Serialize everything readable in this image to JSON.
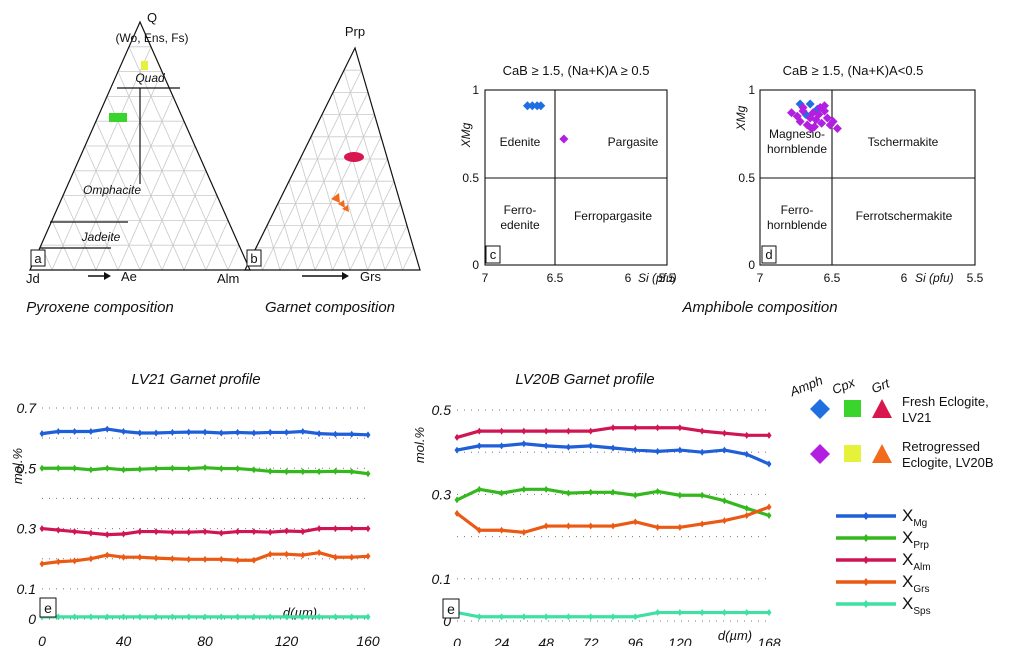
{
  "panels": {
    "pyroxene": {
      "apex_top": "Q",
      "apex_top_sub": "(Wo, Ens, Fs)",
      "apex_left": "Jd",
      "apex_right": "Ae",
      "fields": [
        "Quad",
        "Omphacite",
        "Jadeite"
      ],
      "panel_letter": "a",
      "caption": "Pyroxene composition"
    },
    "garnet": {
      "apex_top": "Prp",
      "apex_left": "Alm",
      "apex_right": "Grs",
      "panel_letter": "b",
      "caption": "Garnet composition"
    },
    "amphibole_c": {
      "title": "CaB ≥ 1.5, (Na+K)A ≥ 0.5",
      "ylabel": "XMg",
      "xlabel": "Si (pfu)",
      "fields": [
        "Edenite",
        "Pargasite",
        "Ferro-",
        "edenite",
        "Ferropargasite"
      ],
      "panel_letter": "c"
    },
    "amphibole_d": {
      "title": "CaB ≥ 1.5, (Na+K)A<0.5",
      "ylabel": "XMg",
      "xlabel": "Si (pfu)",
      "fields": [
        "Magnesio-",
        "hornblende",
        "Tschermakite",
        "Ferro-",
        "hornblende",
        "Ferrotschermakite"
      ],
      "panel_letter": "d"
    },
    "amphibole_caption": "Amphibole composition"
  },
  "legend": {
    "headers": [
      "Amph",
      "Cpx",
      "Grt"
    ],
    "fresh": [
      "Fresh Eclogite,",
      "LV21"
    ],
    "retro": [
      "Retrogressed",
      "Eclogite, LV20B"
    ],
    "colors": {
      "fresh_amph": "#1f6fe0",
      "fresh_cpx": "#39d42c",
      "fresh_grt": "#d8174f",
      "retro_amph": "#b21fe0",
      "retro_cpx": "#e6f23a",
      "retro_grt": "#f26a1b"
    },
    "series_labels": [
      {
        "main": "X",
        "sub": "Mg"
      },
      {
        "main": "X",
        "sub": "Prp"
      },
      {
        "main": "X",
        "sub": "Alm"
      },
      {
        "main": "X",
        "sub": "Grs"
      },
      {
        "main": "X",
        "sub": "Sps"
      }
    ]
  },
  "chart_data": [
    {
      "type": "scatter",
      "title": "CaB ≥ 1.5, (Na+K)A ≥ 0.5",
      "xlabel": "Si (pfu)",
      "ylabel": "XMg",
      "xlim": [
        7,
        5.5
      ],
      "ylim": [
        0,
        1
      ],
      "xticks": [
        "7",
        "6.5",
        "6",
        "5.5"
      ],
      "yticks": [
        "0",
        "0.5",
        "1"
      ],
      "series": [
        {
          "values_x": [
            6.65,
            6.61,
            6.57,
            6.54
          ],
          "values_y": [
            0.91,
            0.91,
            0.91,
            0.91
          ],
          "color": "#1f6fe0"
        },
        {
          "values_x": [
            6.35
          ],
          "values_y": [
            0.72
          ],
          "color": "#b21fe0"
        }
      ]
    },
    {
      "type": "scatter",
      "title": "CaB ≥ 1.5, (Na+K)A<0.5",
      "xlabel": "Si (pfu)",
      "ylabel": "XMg",
      "xlim": [
        7,
        5.5
      ],
      "ylim": [
        0,
        1
      ],
      "xticks": [
        "7",
        "6.5",
        "6",
        "5.5"
      ],
      "yticks": [
        "0",
        "0.5",
        "1"
      ],
      "series": [
        {
          "values_x": [
            6.72,
            6.65,
            6.6,
            6.68
          ],
          "values_y": [
            0.92,
            0.92,
            0.89,
            0.86
          ],
          "color": "#1f6fe0"
        },
        {
          "values_x": [
            6.78,
            6.74,
            6.72,
            6.7,
            6.67,
            6.65,
            6.63,
            6.61,
            6.59,
            6.57,
            6.55,
            6.53,
            6.51,
            6.49,
            6.46,
            6.7,
            6.64,
            6.58,
            6.62,
            6.55
          ],
          "values_y": [
            0.87,
            0.85,
            0.82,
            0.88,
            0.8,
            0.84,
            0.87,
            0.83,
            0.86,
            0.81,
            0.88,
            0.84,
            0.8,
            0.82,
            0.78,
            0.9,
            0.78,
            0.9,
            0.79,
            0.91
          ],
          "color": "#b21fe0"
        }
      ]
    },
    {
      "type": "line",
      "title": "LV21 Garnet profile",
      "xlabel": "d(µm)",
      "ylabel": "mol.%",
      "xlim": [
        0,
        160
      ],
      "ylim": [
        0,
        0.7
      ],
      "xticks": [
        "0",
        "40",
        "80",
        "120",
        "160"
      ],
      "yticks": [
        "0",
        "0.1",
        "0.3",
        "0.5",
        "0.7"
      ],
      "panel_letter": "e",
      "x": [
        0,
        8,
        16,
        24,
        32,
        40,
        48,
        56,
        64,
        72,
        80,
        88,
        96,
        104,
        112,
        120,
        128,
        136,
        144,
        152,
        160
      ],
      "series": [
        {
          "name": "XMg",
          "color": "#1f5fd8",
          "values": [
            0.615,
            0.622,
            0.622,
            0.622,
            0.63,
            0.622,
            0.617,
            0.617,
            0.619,
            0.62,
            0.62,
            0.617,
            0.619,
            0.617,
            0.619,
            0.619,
            0.622,
            0.615,
            0.613,
            0.613,
            0.611
          ]
        },
        {
          "name": "XPrp",
          "color": "#35b81e",
          "values": [
            0.5,
            0.5,
            0.5,
            0.495,
            0.5,
            0.495,
            0.497,
            0.499,
            0.5,
            0.499,
            0.502,
            0.499,
            0.499,
            0.495,
            0.49,
            0.489,
            0.489,
            0.489,
            0.49,
            0.489,
            0.482
          ]
        },
        {
          "name": "XAlm",
          "color": "#cf1553",
          "values": [
            0.3,
            0.295,
            0.29,
            0.285,
            0.28,
            0.282,
            0.29,
            0.29,
            0.288,
            0.288,
            0.29,
            0.285,
            0.29,
            0.29,
            0.288,
            0.292,
            0.29,
            0.3,
            0.3,
            0.3,
            0.3
          ]
        },
        {
          "name": "XGrs",
          "color": "#ea5a15",
          "values": [
            0.183,
            0.19,
            0.193,
            0.2,
            0.212,
            0.205,
            0.205,
            0.202,
            0.2,
            0.198,
            0.198,
            0.198,
            0.195,
            0.195,
            0.215,
            0.215,
            0.212,
            0.22,
            0.205,
            0.205,
            0.208
          ]
        },
        {
          "name": "XSps",
          "color": "#3fe0a3",
          "values": [
            0.007,
            0.007,
            0.007,
            0.007,
            0.007,
            0.007,
            0.007,
            0.007,
            0.007,
            0.007,
            0.007,
            0.007,
            0.007,
            0.007,
            0.007,
            0.007,
            0.007,
            0.007,
            0.007,
            0.007,
            0.007
          ]
        }
      ]
    },
    {
      "type": "line",
      "title": "LV20B Garnet profile",
      "xlabel": "d(µm)",
      "ylabel": "mol.%",
      "xlim": [
        0,
        168
      ],
      "ylim": [
        0,
        0.5
      ],
      "xticks": [
        "0",
        "24",
        "48",
        "72",
        "96",
        "120",
        "168"
      ],
      "yticks": [
        "0",
        "0.1",
        "0.3",
        "0.5"
      ],
      "panel_letter": "e",
      "x": [
        0,
        12,
        24,
        36,
        48,
        60,
        72,
        84,
        96,
        108,
        120,
        132,
        144,
        156,
        168
      ],
      "series": [
        {
          "name": "XMg",
          "color": "#1f5fd8",
          "values": [
            0.405,
            0.415,
            0.415,
            0.42,
            0.415,
            0.412,
            0.415,
            0.41,
            0.405,
            0.402,
            0.405,
            0.4,
            0.405,
            0.395,
            0.372
          ]
        },
        {
          "name": "XPrp",
          "color": "#35b81e",
          "values": [
            0.287,
            0.312,
            0.303,
            0.312,
            0.312,
            0.303,
            0.305,
            0.305,
            0.298,
            0.307,
            0.298,
            0.298,
            0.285,
            0.267,
            0.25
          ]
        },
        {
          "name": "XAlm",
          "color": "#cf1553",
          "values": [
            0.435,
            0.45,
            0.45,
            0.45,
            0.45,
            0.45,
            0.45,
            0.458,
            0.458,
            0.458,
            0.458,
            0.45,
            0.445,
            0.44,
            0.44
          ]
        },
        {
          "name": "XGrs",
          "color": "#ea5a15",
          "values": [
            0.255,
            0.215,
            0.215,
            0.21,
            0.225,
            0.225,
            0.225,
            0.225,
            0.235,
            0.222,
            0.222,
            0.23,
            0.238,
            0.25,
            0.27
          ]
        },
        {
          "name": "XSps",
          "color": "#3fe0a3",
          "values": [
            0.02,
            0.01,
            0.01,
            0.01,
            0.01,
            0.01,
            0.01,
            0.01,
            0.01,
            0.02,
            0.02,
            0.02,
            0.02,
            0.02,
            0.02
          ]
        }
      ]
    }
  ]
}
